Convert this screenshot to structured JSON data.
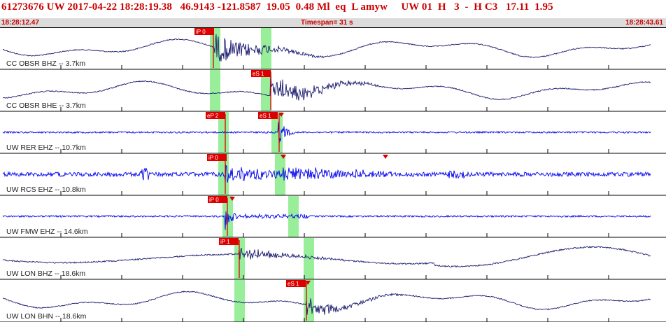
{
  "header": {
    "event_line": "61273676 UW 2017-04-22 18:28:19.38   46.9143 -121.8587  19.05  0.48 Ml  eq  L amyw     UW 01  H   3  -  H C3   17.11  1.95",
    "time_start": "18:28:12.47",
    "timespan": "Timespan=  31 s",
    "time_end": "18:28:43.61"
  },
  "colors": {
    "header_text": "#cc0000",
    "timebar_bg": "#dcdcdc",
    "trace_navy": "#1a1a6e",
    "trace_blue": "#0000ee",
    "pick": "#dd0000",
    "window": "#99ee99",
    "label": "#222222"
  },
  "channels": [
    {
      "label": "CC OBSR BHZ -- 3.7km",
      "trace": "navy",
      "picks": [
        "iP 0"
      ]
    },
    {
      "label": "CC OBSR BHE -- 3.7km",
      "trace": "navy",
      "picks": [
        "eS 1"
      ]
    },
    {
      "label": "UW RER EHZ -- 10.7km",
      "trace": "blue",
      "picks": [
        "eP 2",
        "eS 1"
      ]
    },
    {
      "label": "UW RCS EHZ -- 10.8km",
      "trace": "blue",
      "picks": [
        "iP 0"
      ]
    },
    {
      "label": "UW FMW EHZ -- 14.6km",
      "trace": "blue",
      "picks": [
        "iP 0"
      ]
    },
    {
      "label": "UW LON BHZ -- 18.6km",
      "trace": "navy",
      "picks": [
        "iP 1"
      ]
    },
    {
      "label": "UW LON BHN -- 18.6km",
      "trace": "navy",
      "picks": [
        "eS 1"
      ]
    }
  ]
}
